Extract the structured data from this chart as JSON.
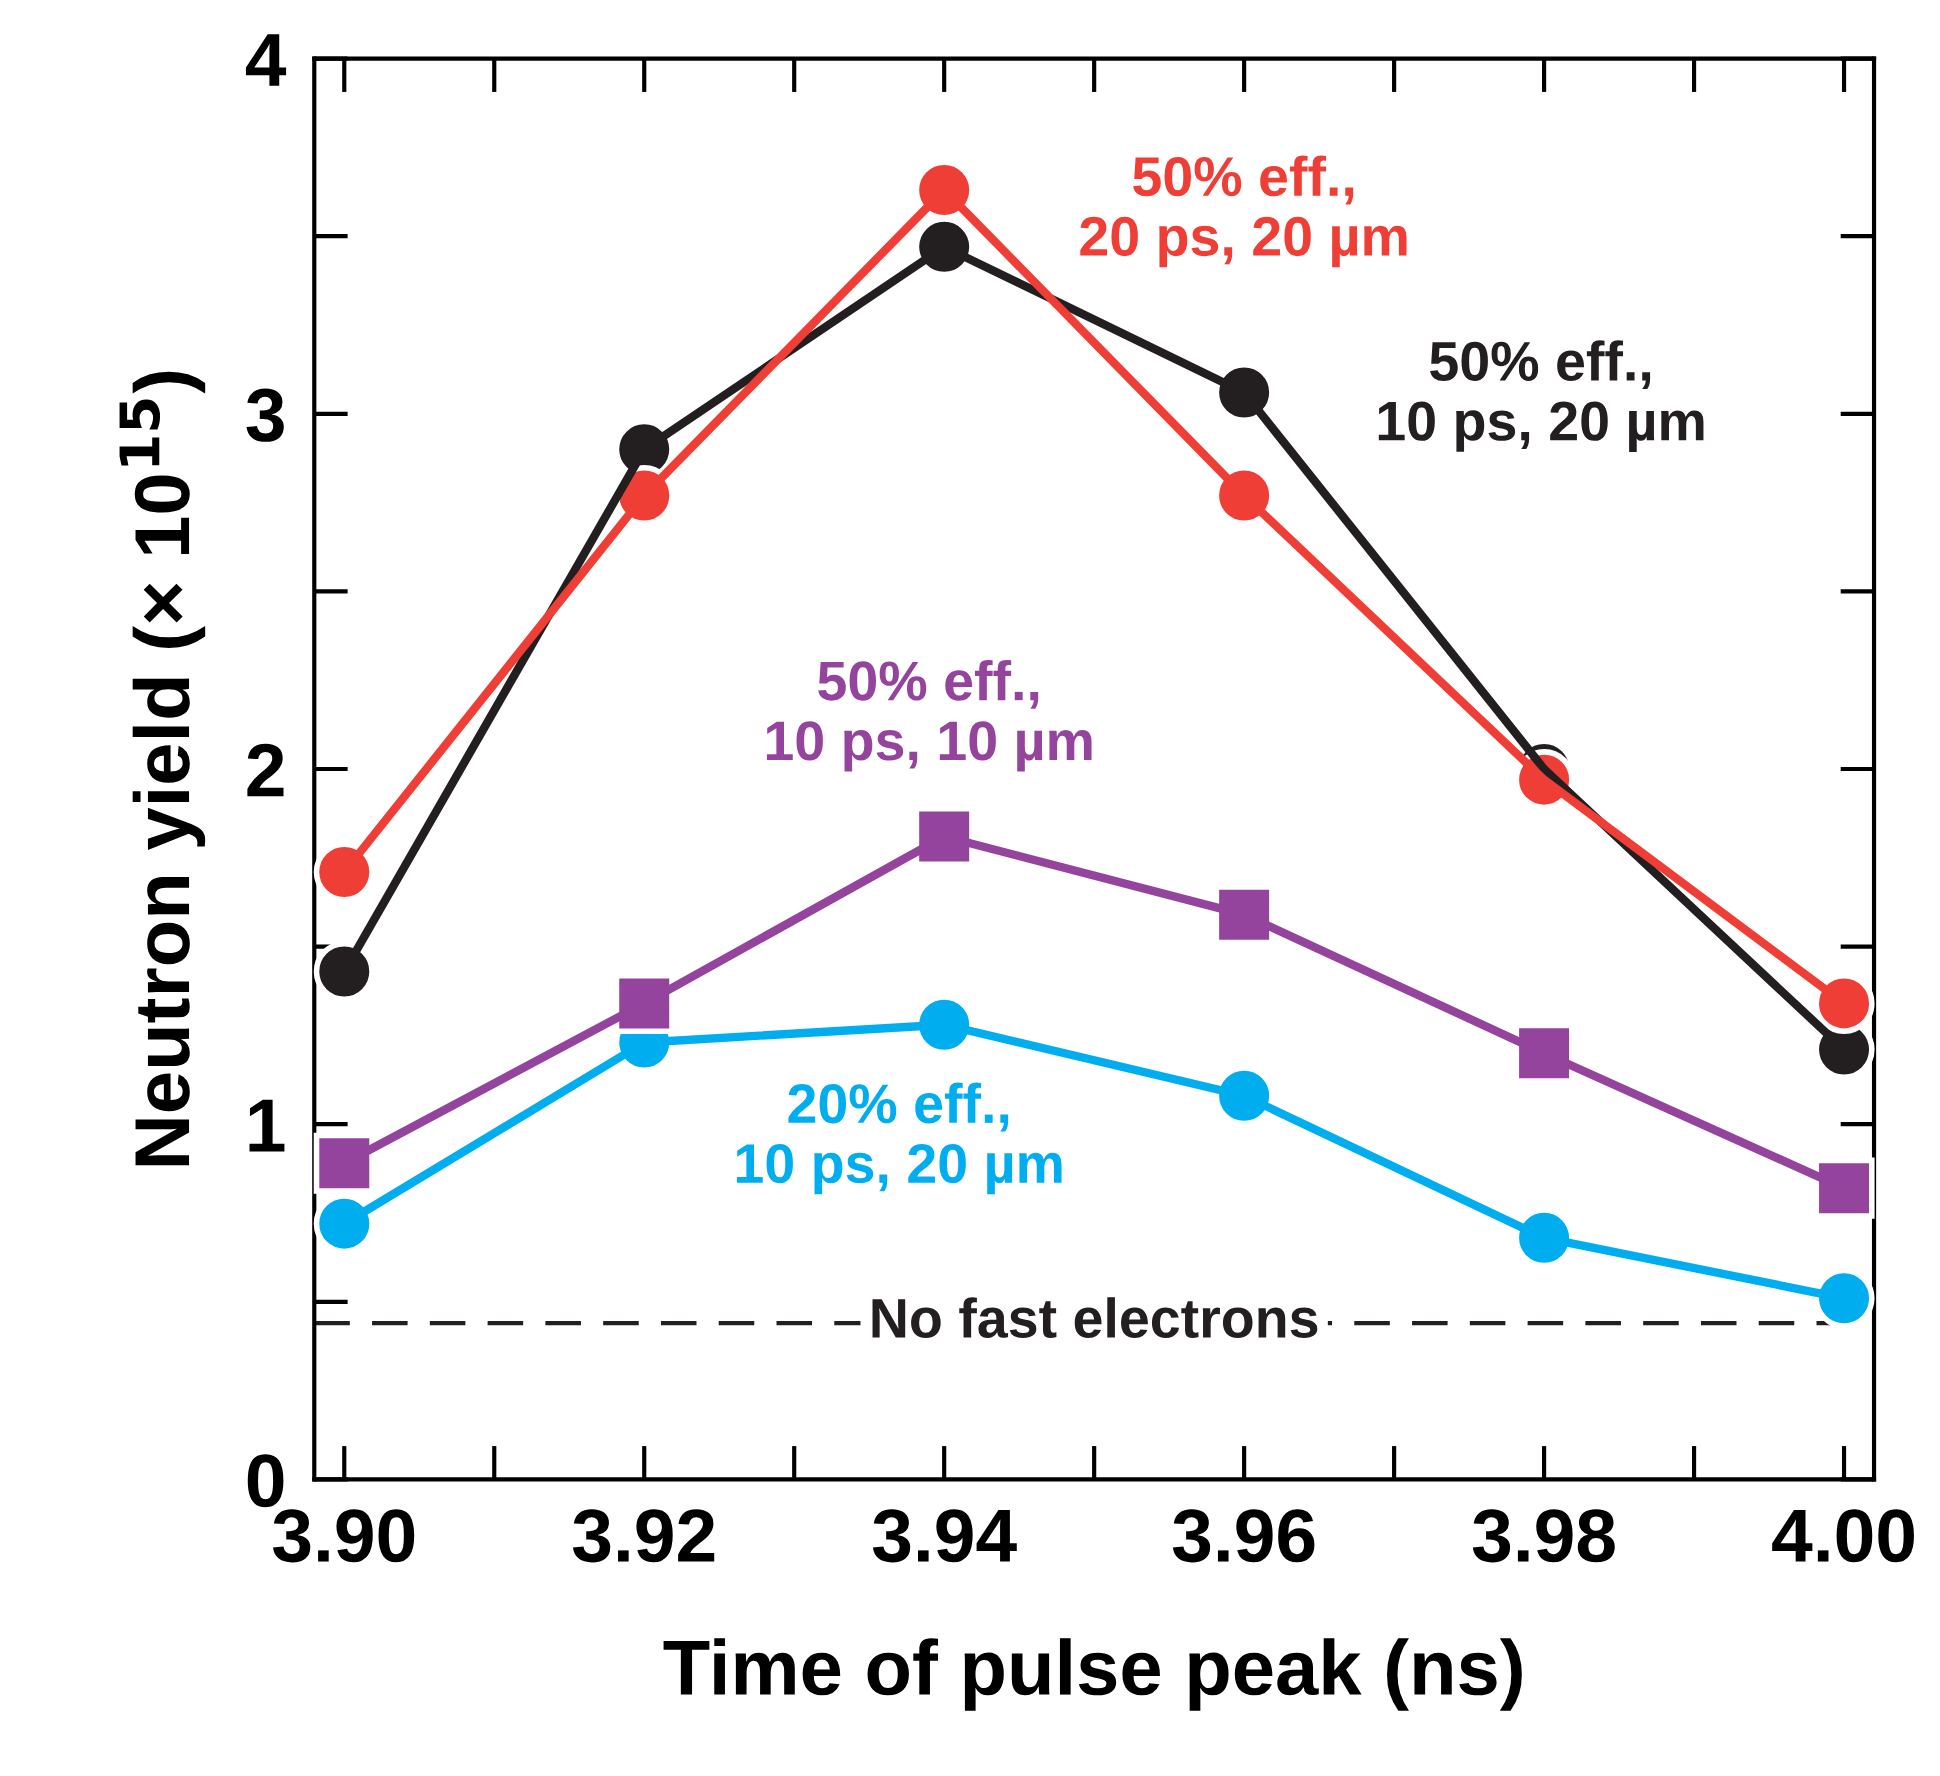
{
  "chart_data": {
    "type": "line",
    "xlabel": "Time of pulse peak (ns)",
    "ylabel": "Neutron yield (× 10$^{15}$)",
    "x": [
      3.9,
      3.92,
      3.94,
      3.96,
      3.98,
      4.0
    ],
    "series": [
      {
        "name": "50% eff.,\n10 ps, 20 µm",
        "color": "#231f20",
        "marker": "circle",
        "values": [
          1.43,
          2.9,
          3.47,
          3.06,
          2.0,
          1.21
        ]
      },
      {
        "name": "50% eff.,\n20 ps, 20 µm",
        "color": "#ef3e36",
        "marker": "circle",
        "values": [
          1.71,
          2.77,
          3.63,
          2.77,
          1.97,
          1.34
        ]
      },
      {
        "name": "50% eff.,\n10 ps, 10 µm",
        "color": "#94449c",
        "marker": "square",
        "values": [
          0.89,
          1.34,
          1.81,
          1.59,
          1.2,
          0.82
        ]
      },
      {
        "name": "20% eff.,\n10 ps, 20 µm",
        "color": "#00aeef",
        "marker": "circle",
        "values": [
          0.72,
          1.23,
          1.28,
          1.08,
          0.68,
          0.51
        ]
      }
    ],
    "ref_lines": [
      {
        "axis": "y",
        "value": 0.44,
        "label": "No fast electrons",
        "color": "#231f20",
        "line_style": "dashed"
      }
    ],
    "xlim": [
      3.898,
      4.002
    ],
    "ylim": [
      0,
      4
    ],
    "xticks": [
      {
        "value": 3.9,
        "label": "3.90"
      },
      {
        "value": 3.92,
        "label": "3.92"
      },
      {
        "value": 3.94,
        "label": "3.94"
      },
      {
        "value": 3.96,
        "label": "3.96"
      },
      {
        "value": 3.98,
        "label": "3.98"
      },
      {
        "value": 4.0,
        "label": "4.00"
      }
    ],
    "yticks": [
      0,
      1,
      2,
      3,
      4
    ],
    "grid": false,
    "legend": false,
    "line_style": "solid"
  }
}
